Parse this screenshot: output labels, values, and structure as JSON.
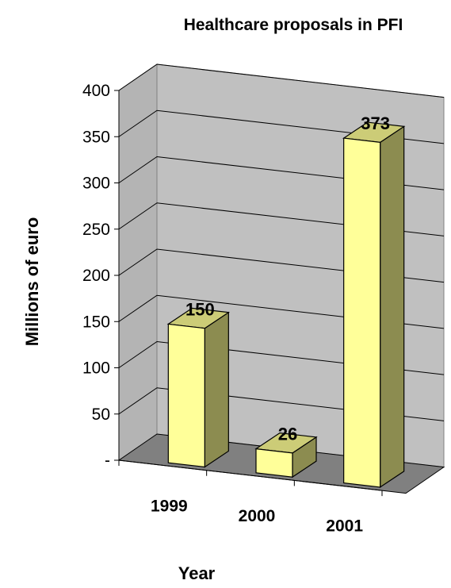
{
  "chart_data": {
    "type": "bar",
    "title": "Healthcare proposals in PFI",
    "xlabel": "Year",
    "ylabel": "Millions of euro",
    "categories": [
      "1999",
      "2000",
      "2001"
    ],
    "values": [
      150,
      26,
      373
    ],
    "data_labels": [
      "150",
      "26",
      "373"
    ],
    "y_ticks": [
      "-",
      "50",
      "100",
      "150",
      "200",
      "250",
      "300",
      "350",
      "400"
    ],
    "ylim": [
      0,
      400
    ],
    "grid": true,
    "legend": "none",
    "style": "3d-column",
    "colors": {
      "bar_front": "#ffff99",
      "bar_side": "#8c8c50",
      "bar_top": "#cccc77",
      "back_wall": "#c0c0c0",
      "side_wall": "#b4b4b4",
      "floor": "#808080",
      "gridline": "#000000"
    }
  }
}
